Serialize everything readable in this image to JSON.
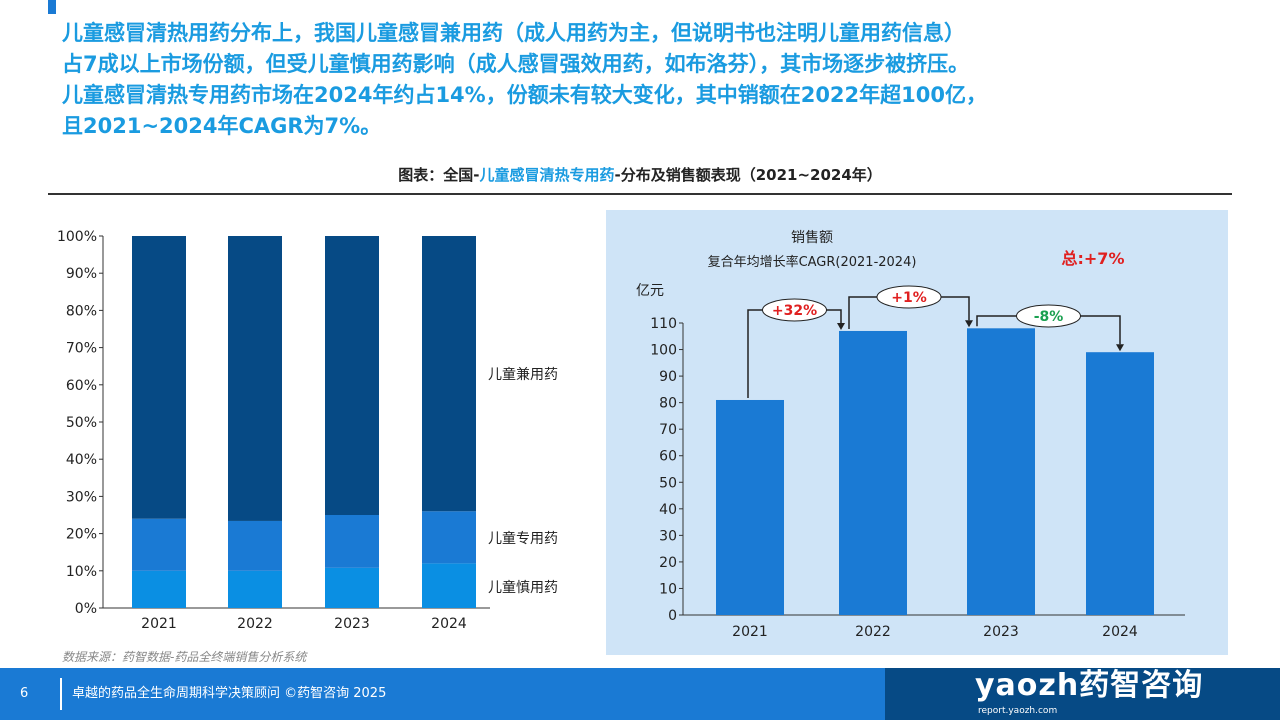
{
  "headline": [
    "儿童感冒清热用药分布上，我国儿童感冒兼用药（成人用药为主，但说明书也注明儿童用药信息）",
    "占7成以上市场份额，但受儿童慎用药影响（成人感冒强效用药，如布洛芬），其市场逐步被挤压。",
    "儿童感冒清热专用药市场在2024年约占14%，份额未有较大变化，其中销额在2022年超100亿，",
    "且2021~2024年CAGR为7%。"
  ],
  "figure_title": {
    "prefix": "图表：全国-",
    "highlight": "儿童感冒清热专用药",
    "suffix": "-分布及销售额表现（2021~2024年）"
  },
  "source": "数据来源：药智数据-药品全终端销售分析系统",
  "footer": {
    "page": "6",
    "text": "卓越的药品全生命周期科学决策顾问 ©药智咨询 2025",
    "logo": "yaozh药智咨询",
    "logo_sub": "report.yaozh.com"
  },
  "chart_data": [
    {
      "type": "bar",
      "stacked": true,
      "categories": [
        "2021",
        "2022",
        "2023",
        "2024"
      ],
      "ylim": [
        0,
        100
      ],
      "yticks": [
        "0%",
        "10%",
        "20%",
        "30%",
        "40%",
        "50%",
        "60%",
        "70%",
        "80%",
        "90%",
        "100%"
      ],
      "series": [
        {
          "name": "儿童慎用药",
          "color": "#0a8fe3",
          "values": [
            10,
            10,
            10.8,
            12
          ]
        },
        {
          "name": "儿童专用药",
          "color": "#1a7ad4",
          "values": [
            14,
            13.4,
            14.2,
            14
          ]
        },
        {
          "name": "儿童兼用药",
          "color": "#064a85",
          "values": [
            76,
            76.6,
            75,
            74
          ]
        }
      ]
    },
    {
      "type": "bar",
      "title": "销售额",
      "subtitle": "复合年均增长率CAGR(2021-2024)",
      "ylabel": "亿元",
      "ylim": [
        0,
        110
      ],
      "yticks": [
        "0",
        "10",
        "20",
        "30",
        "40",
        "50",
        "60",
        "70",
        "80",
        "90",
        "100",
        "110"
      ],
      "categories": [
        "2021",
        "2022",
        "2023",
        "2024"
      ],
      "values": [
        81,
        107,
        108,
        99
      ],
      "color": "#1a7ad4",
      "growth": [
        {
          "label": "+32%",
          "color": "#e02020"
        },
        {
          "label": "+1%",
          "color": "#e02020"
        },
        {
          "label": "-8%",
          "color": "#1aa050"
        }
      ],
      "total": {
        "label": "总:+7%",
        "color": "#e02020"
      }
    }
  ]
}
